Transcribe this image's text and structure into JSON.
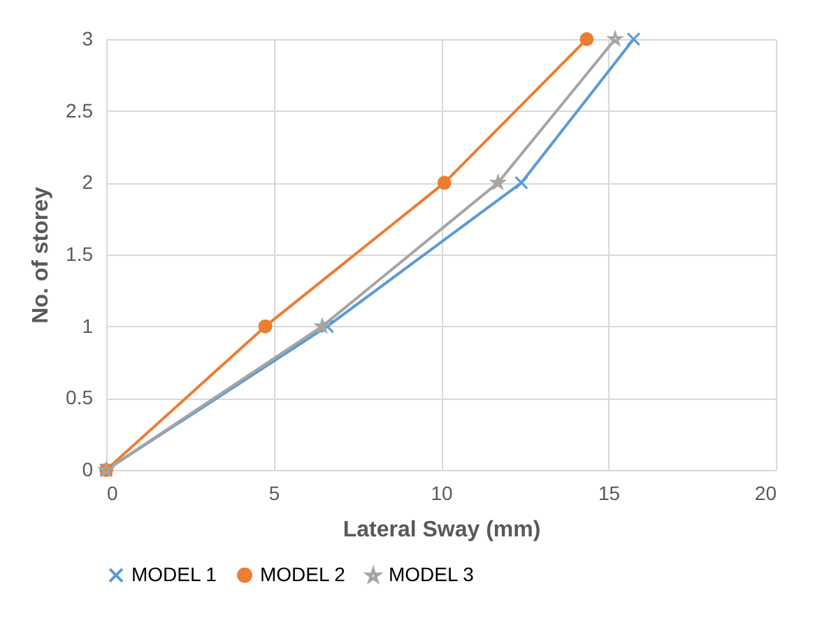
{
  "chart_data": {
    "type": "line",
    "xlabel": "Lateral Sway (mm)",
    "ylabel": "No. of storey",
    "xlim": [
      0,
      20
    ],
    "xticks": [
      0,
      5,
      10,
      15,
      20
    ],
    "ylim": [
      0,
      3
    ],
    "yticks": [
      0,
      0.5,
      1,
      1.5,
      2,
      2.5,
      3
    ],
    "grid": true,
    "legend": "bottom",
    "line_style": "solid",
    "series": [
      {
        "name": "MODEL 1",
        "color": "#5b9bd5",
        "marker": "cross",
        "x": [
          0,
          6.6,
          12.4,
          15.75
        ],
        "values": [
          0,
          1,
          2,
          3
        ]
      },
      {
        "name": "MODEL 2",
        "color": "#ed7d31",
        "marker": "circle",
        "x": [
          0,
          4.75,
          10.1,
          14.35
        ],
        "values": [
          0,
          1,
          2,
          3
        ]
      },
      {
        "name": "MODEL 3",
        "color": "#a5a5a5",
        "marker": "star",
        "x": [
          0,
          6.45,
          11.7,
          15.2
        ],
        "values": [
          0,
          1,
          2,
          3
        ]
      }
    ]
  }
}
